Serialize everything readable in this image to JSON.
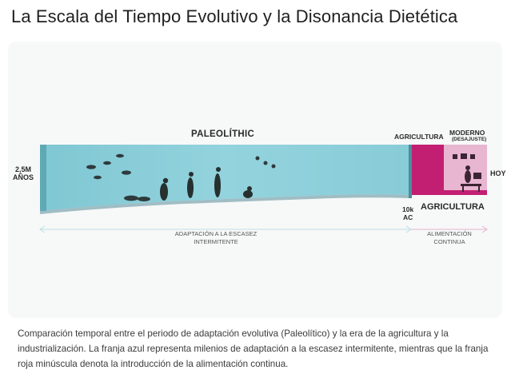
{
  "title": "La Escala del Tiempo Evolutivo y la Disonancia Dietética",
  "diagram": {
    "label_start": "2,5M\nAÑOS",
    "label_paleo": "PALEOLÍTHIC",
    "label_agri_top": "AGRICULTURA",
    "label_modern": "MODERNO",
    "label_modern_sub": "(DESAJUSTE)",
    "label_now": "HOY",
    "label_10k": "10k\nAC",
    "label_agri_bottom": "AGRICULTURA",
    "span_left_label": "ADAPTACIÓN A LA ESCASEZ\nINTERMITENTE",
    "span_right_label": "ALIMENTACIÓN\nCONTINUA",
    "colors": {
      "paleo_band": "#8fd0da",
      "agri_band": "#c21f72",
      "modern_band": "#e8b2cf",
      "span_line": "#bcdfe6",
      "span_line_right": "#e6b5cf"
    }
  },
  "caption": "Comparación temporal entre el periodo de adaptación evolutiva (Paleolítico) y la era de la agricultura y la industrialización. La franja azul representa milenios de adaptación a la escasez intermitente, mientras que la franja roja minúscula denota la introducción de la alimentación continua."
}
